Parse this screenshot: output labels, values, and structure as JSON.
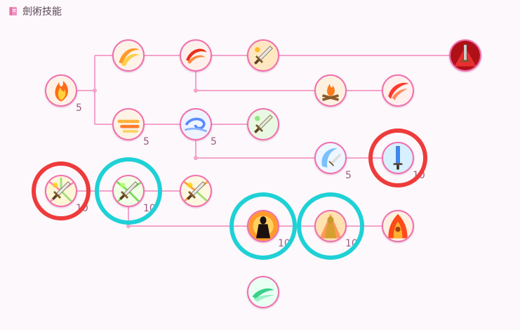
{
  "header": {
    "title": "劍術技能",
    "icon": "book-icon"
  },
  "colors": {
    "line": "#f4a3cc",
    "ring_red": "#ee3b3b",
    "ring_cyan": "#1ed1d6"
  },
  "skills": [
    {
      "id": "flame-burst",
      "icon": "flame-burst-icon",
      "level": "5"
    },
    {
      "id": "orange-swirl",
      "icon": "orange-swirl-icon",
      "level": ""
    },
    {
      "id": "red-crescent",
      "icon": "red-crescent-icon",
      "level": ""
    },
    {
      "id": "fire-sword",
      "icon": "fire-sword-icon",
      "level": ""
    },
    {
      "id": "crimson-blade",
      "icon": "crimson-blade-icon",
      "level": ""
    },
    {
      "id": "campfire",
      "icon": "campfire-icon",
      "level": ""
    },
    {
      "id": "red-slash",
      "icon": "red-slash-icon",
      "level": ""
    },
    {
      "id": "fire-dash",
      "icon": "fire-dash-icon",
      "level": "5"
    },
    {
      "id": "wind-spiral",
      "icon": "wind-spiral-icon",
      "level": "5"
    },
    {
      "id": "green-blade",
      "icon": "green-blade-icon",
      "level": ""
    },
    {
      "id": "crescent-strike",
      "icon": "crescent-strike-icon",
      "level": "5"
    },
    {
      "id": "ice-sword",
      "icon": "ice-sword-icon",
      "level": "10"
    },
    {
      "id": "radiant-sword",
      "icon": "radiant-sword-icon",
      "level": "10"
    },
    {
      "id": "green-radiant-sword",
      "icon": "green-radiant-sword-icon",
      "level": "10"
    },
    {
      "id": "sword-burst",
      "icon": "sword-burst-icon",
      "level": ""
    },
    {
      "id": "dark-warrior",
      "icon": "dark-warrior-icon",
      "level": "10"
    },
    {
      "id": "golden-warrior",
      "icon": "golden-warrior-icon",
      "level": "10"
    },
    {
      "id": "fire-warrior",
      "icon": "fire-warrior-icon",
      "level": ""
    },
    {
      "id": "green-wave",
      "icon": "green-wave-icon",
      "level": ""
    }
  ],
  "highlights": [
    {
      "skill": "radiant-sword",
      "color": "red"
    },
    {
      "skill": "ice-sword",
      "color": "red"
    },
    {
      "skill": "green-radiant-sword",
      "color": "cyan"
    },
    {
      "skill": "dark-warrior",
      "color": "cyan"
    },
    {
      "skill": "golden-warrior",
      "color": "cyan"
    }
  ]
}
